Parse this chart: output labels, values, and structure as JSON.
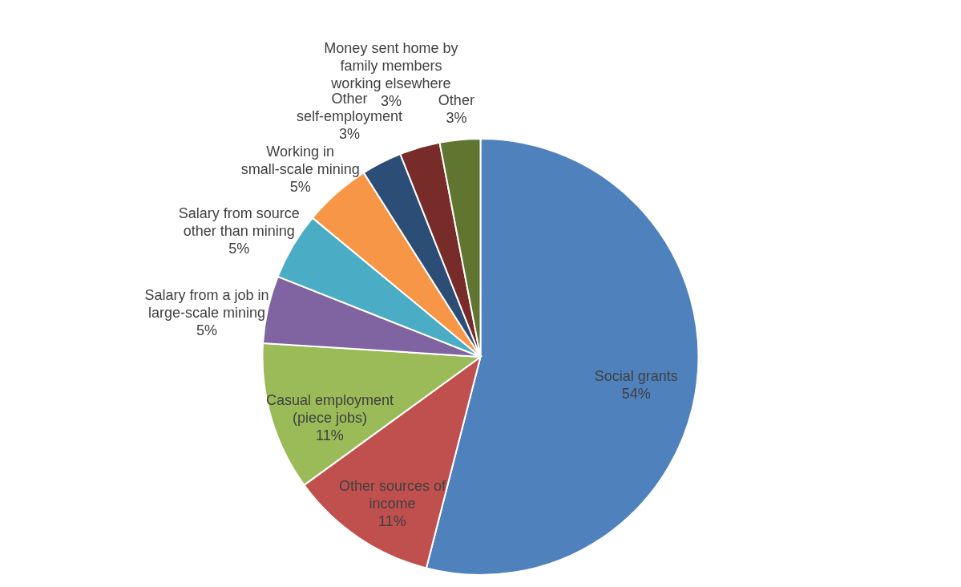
{
  "chart_data": {
    "type": "pie",
    "categories": [
      "Social grants",
      "Other sources of income",
      "Casual employment (piece jobs)",
      "Salary from a job in large-scale mining",
      "Salary from source other than mining",
      "Working in small-scale mining",
      "Other self-employment",
      "Money sent home by family members working elsewhere",
      "Other"
    ],
    "values": [
      54,
      11,
      11,
      5,
      5,
      5,
      3,
      3,
      3
    ],
    "value_labels": [
      "54%",
      "11%",
      "11%",
      "5%",
      "5%",
      "5%",
      "3%",
      "3%",
      "3%"
    ],
    "colors": [
      "#4f81bd",
      "#c0504d",
      "#9bbb59",
      "#8064a2",
      "#4bacc6",
      "#f79646",
      "#2c4d75",
      "#772c2a",
      "#5f7530"
    ]
  }
}
